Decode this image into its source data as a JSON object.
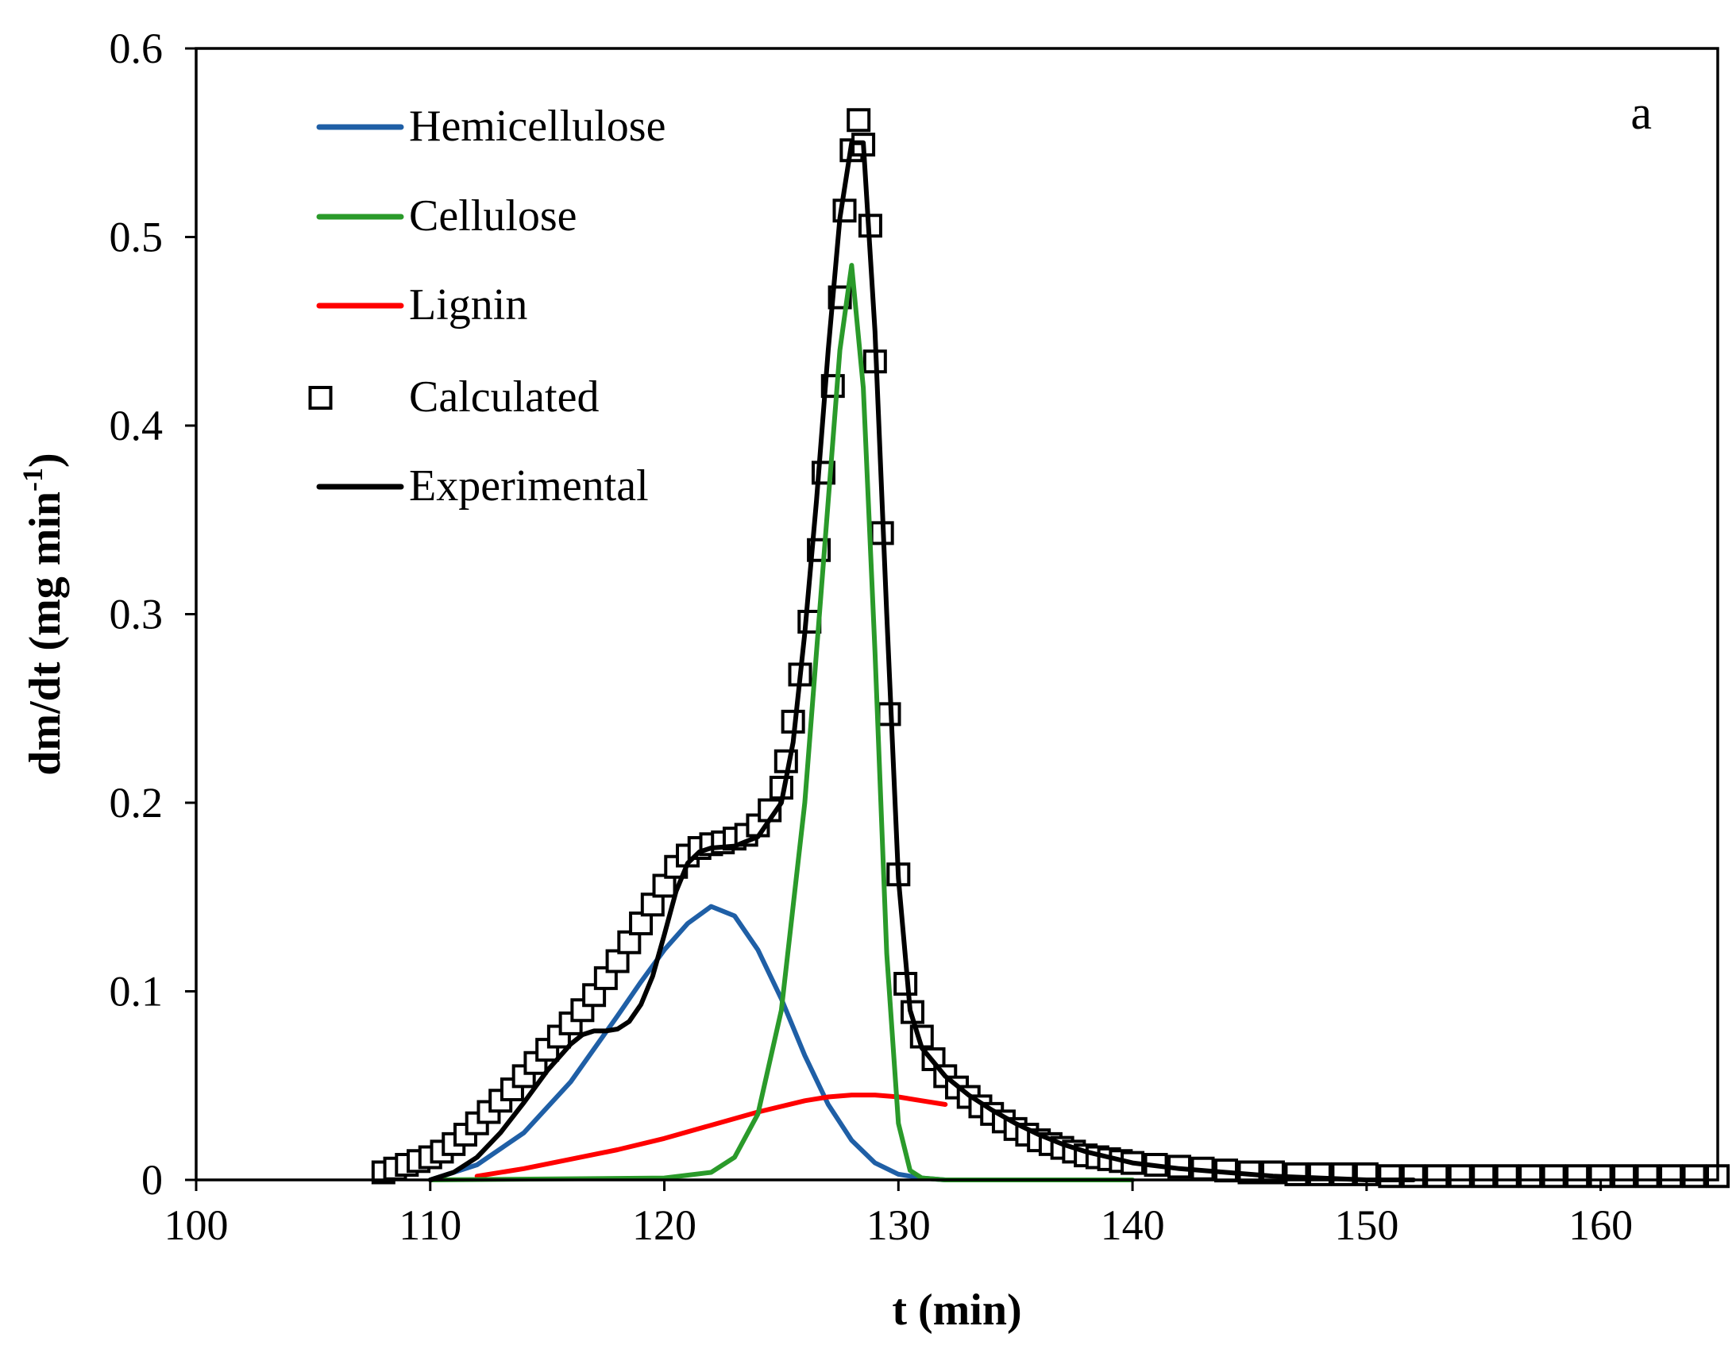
{
  "chart_data": {
    "type": "line",
    "panel_label": "a",
    "xlabel": "t (min)",
    "ylabel": "dm/dt (mg min",
    "ylabel_superscript": "-1",
    "ylabel_close": ")",
    "xlim": [
      100,
      165
    ],
    "ylim": [
      0,
      0.6
    ],
    "x_ticks": [
      100,
      110,
      120,
      130,
      140,
      150,
      160
    ],
    "y_ticks": [
      0,
      0.1,
      0.2,
      0.3,
      0.4,
      0.5,
      0.6
    ],
    "y_tick_labels": [
      "0",
      "0.1",
      "0.2",
      "0.3",
      "0.4",
      "0.5",
      "0.6"
    ],
    "legend_position": "top-left",
    "series": [
      {
        "name": "Hemicellulose",
        "color": "#1f5fa6",
        "style": "line",
        "x": [
          110,
          112,
          114,
          116,
          118,
          119,
          120,
          121,
          122,
          123,
          124,
          125,
          126,
          127,
          128,
          129,
          130,
          131,
          132
        ],
        "values": [
          0.0,
          0.008,
          0.025,
          0.052,
          0.087,
          0.105,
          0.122,
          0.136,
          0.145,
          0.14,
          0.122,
          0.096,
          0.066,
          0.04,
          0.021,
          0.009,
          0.003,
          0.001,
          0.0
        ]
      },
      {
        "name": "Cellulose",
        "color": "#2a9a2a",
        "style": "line",
        "x": [
          110,
          120,
          122,
          123,
          124,
          125,
          126,
          127,
          127.5,
          128,
          128.5,
          129,
          129.5,
          130,
          130.5,
          131,
          132,
          135,
          140
        ],
        "values": [
          0.0,
          0.001,
          0.004,
          0.012,
          0.035,
          0.09,
          0.2,
          0.36,
          0.44,
          0.485,
          0.42,
          0.28,
          0.12,
          0.03,
          0.005,
          0.001,
          0.0,
          0.0,
          0.0
        ]
      },
      {
        "name": "Lignin",
        "color": "#ff0000",
        "style": "line",
        "x": [
          112,
          114,
          116,
          118,
          120,
          122,
          124,
          126,
          127,
          128,
          129,
          130,
          131,
          132
        ],
        "values": [
          0.002,
          0.006,
          0.011,
          0.016,
          0.022,
          0.029,
          0.036,
          0.042,
          0.044,
          0.045,
          0.045,
          0.044,
          0.042,
          0.04
        ]
      },
      {
        "name": "Calculated",
        "color": "#000000",
        "style": "marker",
        "x": [
          108,
          108.5,
          109,
          109.5,
          110,
          110.5,
          111,
          111.5,
          112,
          112.5,
          113,
          113.5,
          114,
          114.5,
          115,
          115.5,
          116,
          116.5,
          117,
          117.5,
          118,
          118.5,
          119,
          119.5,
          120,
          120.5,
          121,
          121.5,
          122,
          122.5,
          123,
          123.5,
          124,
          124.5,
          125,
          125.2,
          125.5,
          125.8,
          126.2,
          126.6,
          126.8,
          127.2,
          127.5,
          127.7,
          128.0,
          128.3,
          128.5,
          128.8,
          129.0,
          129.3,
          129.6,
          130.0,
          130.3,
          130.6,
          131,
          131.5,
          132,
          132.5,
          133,
          133.5,
          134,
          134.5,
          135,
          135.5,
          136,
          136.5,
          137,
          137.5,
          138,
          138.5,
          139,
          139.5,
          140,
          141,
          142,
          143,
          144,
          145,
          146,
          147,
          148,
          149,
          150,
          151,
          152,
          153,
          154,
          155,
          156,
          157,
          158,
          159,
          160,
          161,
          162,
          163,
          164,
          165
        ],
        "values": [
          0.004,
          0.006,
          0.008,
          0.01,
          0.012,
          0.015,
          0.019,
          0.024,
          0.03,
          0.036,
          0.042,
          0.048,
          0.055,
          0.062,
          0.069,
          0.076,
          0.083,
          0.09,
          0.098,
          0.107,
          0.116,
          0.126,
          0.136,
          0.146,
          0.156,
          0.166,
          0.172,
          0.176,
          0.178,
          0.179,
          0.181,
          0.183,
          0.188,
          0.196,
          0.208,
          0.222,
          0.243,
          0.268,
          0.296,
          0.334,
          0.375,
          0.421,
          0.468,
          0.514,
          0.546,
          0.562,
          0.549,
          0.506,
          0.434,
          0.343,
          0.247,
          0.162,
          0.104,
          0.089,
          0.076,
          0.064,
          0.055,
          0.049,
          0.044,
          0.039,
          0.035,
          0.031,
          0.027,
          0.024,
          0.021,
          0.019,
          0.017,
          0.015,
          0.013,
          0.012,
          0.011,
          0.01,
          0.009,
          0.008,
          0.007,
          0.006,
          0.005,
          0.004,
          0.004,
          0.003,
          0.003,
          0.003,
          0.003,
          0.002,
          0.002,
          0.002,
          0.002,
          0.002,
          0.002,
          0.002,
          0.002,
          0.002,
          0.002,
          0.002,
          0.002,
          0.002,
          0.002,
          0.002
        ]
      },
      {
        "name": "Experimental",
        "color": "#000000",
        "style": "line",
        "x": [
          110,
          111,
          112,
          113,
          114,
          115,
          116,
          116.5,
          117,
          117.5,
          118,
          118.5,
          119,
          119.5,
          120,
          120.5,
          121,
          121.5,
          122,
          123,
          124,
          125,
          125.5,
          126,
          126.5,
          127,
          127.5,
          128,
          128.5,
          129,
          129.5,
          130,
          130.5,
          131,
          132,
          133,
          134,
          135,
          136,
          137,
          138,
          139,
          140,
          142,
          144,
          146,
          148,
          150,
          152
        ],
        "values": [
          0.0,
          0.004,
          0.012,
          0.025,
          0.041,
          0.058,
          0.072,
          0.077,
          0.079,
          0.079,
          0.08,
          0.084,
          0.093,
          0.108,
          0.13,
          0.153,
          0.168,
          0.174,
          0.176,
          0.177,
          0.182,
          0.2,
          0.232,
          0.29,
          0.36,
          0.44,
          0.51,
          0.55,
          0.55,
          0.45,
          0.3,
          0.16,
          0.09,
          0.07,
          0.055,
          0.045,
          0.037,
          0.03,
          0.024,
          0.019,
          0.015,
          0.012,
          0.009,
          0.006,
          0.004,
          0.002,
          0.001,
          0.0,
          0.0
        ]
      }
    ]
  }
}
